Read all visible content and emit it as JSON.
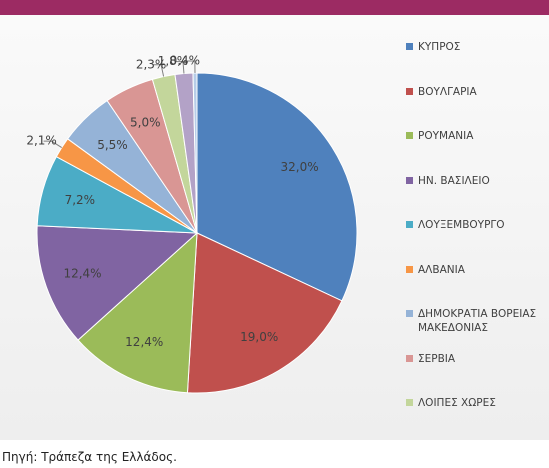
{
  "chart_data": {
    "type": "pie",
    "categories": [
      "ΚΥΠΡΟΣ",
      "ΒΟΥΛΓΑΡΙΑ",
      "ΡΟΥΜΑΝΙΑ",
      "ΗΝ. ΒΑΣΙΛΕΙΟ",
      "ΛΟΥΞΕΜΒΟΥΡΓΟ",
      "ΑΛΒΑΝΙΑ",
      "ΔΗΜΟΚΡΑΤΙΑ ΒΟΡΕΙΑΣ ΜΑΚΕΔΟΝΙΑΣ",
      "ΣΕΡΒΙΑ",
      "ΛΟΙΠΕΣ ΧΩΡΕΣ",
      null,
      null
    ],
    "values": [
      32.0,
      19.0,
      12.4,
      12.4,
      7.2,
      2.1,
      5.5,
      5.0,
      2.3,
      1.8,
      0.4
    ],
    "value_labels": [
      "32,0%",
      "19,0%",
      "12,4%",
      "12,4%",
      "7,2%",
      "2,1%",
      "5,5%",
      "5,0%",
      "2,3%",
      "1,8%",
      "0,4%"
    ],
    "colors": [
      "#4f81bd",
      "#c0504d",
      "#9bbb59",
      "#8064a2",
      "#4bacc6",
      "#f79646",
      "#95b3d7",
      "#d99694",
      "#c3d69b",
      "#b3a2c7",
      "#b7cde8"
    ],
    "legend": "right"
  },
  "source": "Πηγή: Τράπεζα της Ελλάδος."
}
